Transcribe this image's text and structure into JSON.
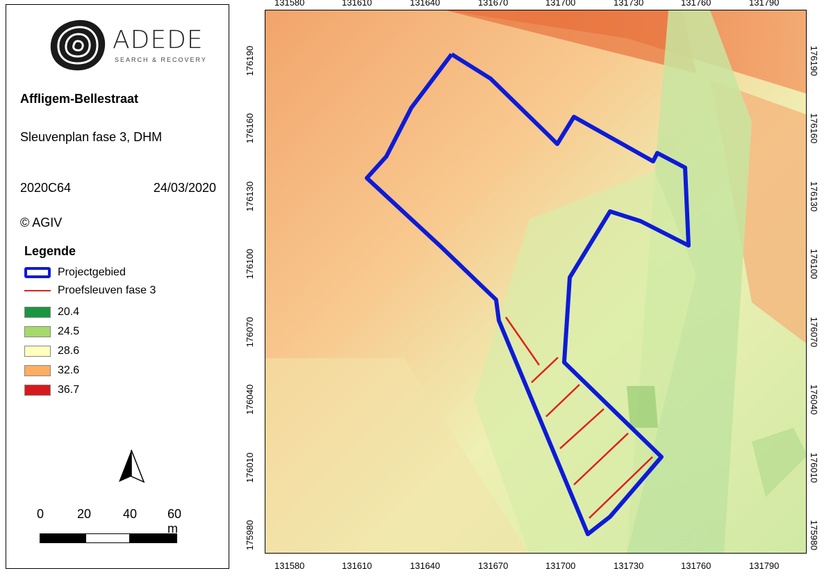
{
  "logo": {
    "name": "ADEDE",
    "tagline": "SEARCH & RECOVERY"
  },
  "project": {
    "site_name": "Affligem-Bellestraat",
    "subtitle": "Sleuvenplan fase 3, DHM",
    "code": "2020C64",
    "date": "24/03/2020",
    "copyright": "© AGIV"
  },
  "legend": {
    "title": "Legende",
    "items": [
      {
        "label": "Projectgebied",
        "type": "polygon-outline",
        "color": "#0d1bd6"
      },
      {
        "label": "Proefsleuven fase 3",
        "type": "line",
        "color": "#e0201b"
      },
      {
        "label": "20.4",
        "type": "fill",
        "color": "#1a9641"
      },
      {
        "label": "24.5",
        "type": "fill",
        "color": "#a6d96a"
      },
      {
        "label": "28.6",
        "type": "fill",
        "color": "#ffffc0"
      },
      {
        "label": "32.6",
        "type": "fill",
        "color": "#fdae61"
      },
      {
        "label": "36.7",
        "type": "fill",
        "color": "#d7191c"
      }
    ]
  },
  "north_arrow": {
    "icon": "north-arrow-icon"
  },
  "scale_bar": {
    "labels": [
      "0",
      "20",
      "40",
      "60 m"
    ]
  },
  "map": {
    "x_ticks": [
      "131580",
      "131610",
      "131640",
      "131670",
      "131700",
      "131730",
      "131760",
      "131790"
    ],
    "y_ticks": [
      "176190",
      "176160",
      "176130",
      "176100",
      "176070",
      "176040",
      "176010",
      "175980"
    ]
  }
}
